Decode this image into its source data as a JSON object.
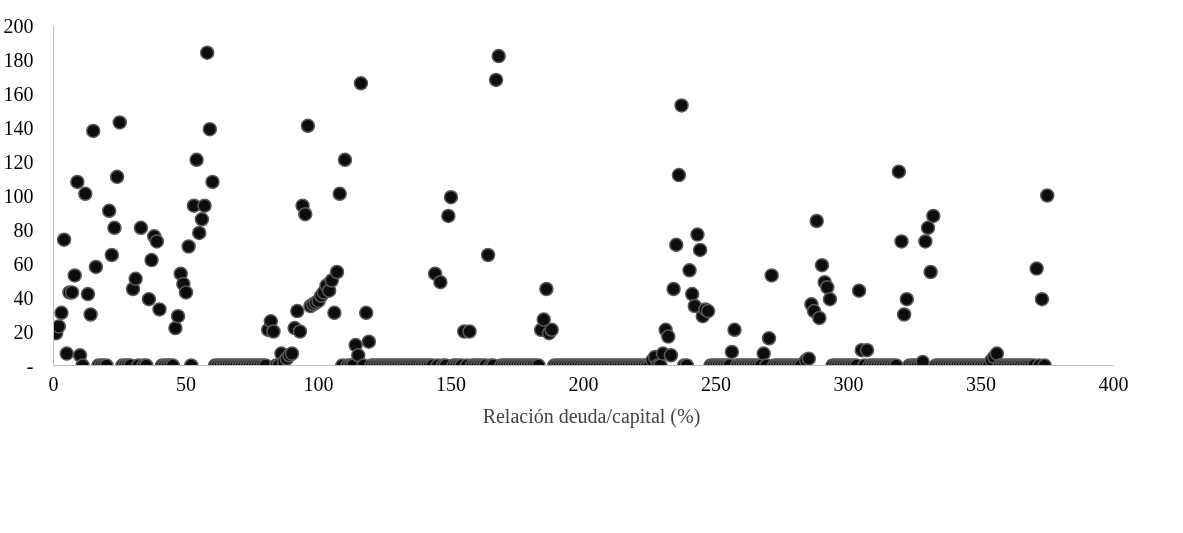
{
  "chart_data": {
    "type": "scatter",
    "xlim": [
      0,
      400
    ],
    "xticks": [
      0,
      50,
      100,
      150,
      200,
      250,
      300,
      350,
      400
    ],
    "ylim": [
      0,
      200
    ],
    "yticks": [
      {
        "value": 0,
        "label": "-"
      },
      20,
      40,
      60,
      80,
      100,
      120,
      140,
      160,
      180,
      200
    ],
    "grid": false,
    "legend": "bottom",
    "marker": "circle",
    "series": [
      {
        "name": "Relación deuda/capital (%)",
        "color": "#0d0d0d",
        "x": [
          1,
          2,
          3,
          4,
          5,
          6,
          7,
          8,
          9,
          10,
          11,
          12,
          13,
          14,
          15,
          16,
          17,
          18,
          19,
          20,
          21,
          22,
          23,
          24,
          25,
          26,
          27,
          28,
          29,
          30,
          31,
          32,
          33,
          34,
          35,
          36,
          37,
          38,
          39,
          40,
          41,
          42,
          43,
          44,
          45,
          46,
          47,
          48,
          49,
          50,
          51,
          52,
          53,
          54,
          55,
          56,
          57,
          58,
          59,
          60,
          61,
          62,
          63,
          64,
          65,
          66,
          67,
          68,
          69,
          70,
          71,
          72,
          73,
          74,
          75,
          76,
          77,
          78,
          79,
          80,
          81,
          82,
          83,
          84,
          85,
          86,
          87,
          88,
          89,
          90,
          91,
          92,
          93,
          94,
          95,
          96,
          97,
          98,
          99,
          100,
          101,
          102,
          103,
          104,
          105,
          106,
          107,
          108,
          109,
          110,
          111,
          112,
          113,
          114,
          115,
          116,
          117,
          118,
          119,
          120,
          121,
          122,
          123,
          124,
          125,
          126,
          127,
          128,
          129,
          130,
          131,
          132,
          133,
          134,
          135,
          136,
          137,
          138,
          139,
          140,
          141,
          142,
          143,
          144,
          145,
          146,
          147,
          148,
          149,
          150,
          151,
          152,
          153,
          154,
          155,
          156,
          157,
          158,
          159,
          160,
          161,
          162,
          163,
          164,
          165,
          166,
          167,
          168,
          169,
          170,
          171,
          172,
          173,
          174,
          175,
          176,
          177,
          178,
          179,
          180,
          181,
          182,
          183,
          184,
          185,
          186,
          187,
          188,
          189,
          190,
          191,
          192,
          193,
          194,
          195,
          196,
          197,
          198,
          199,
          200,
          201,
          202,
          203,
          204,
          205,
          206,
          207,
          208,
          209,
          210,
          211,
          212,
          213,
          214,
          215,
          216,
          217,
          218,
          219,
          220,
          221,
          222,
          223,
          224,
          225,
          226,
          227,
          228,
          229,
          230,
          231,
          232,
          233,
          234,
          235,
          236,
          237,
          238,
          239,
          240,
          241,
          242,
          243,
          244,
          245,
          246,
          247,
          248,
          249,
          250,
          251,
          252,
          253,
          254,
          255,
          256,
          257,
          258,
          259,
          260,
          261,
          262,
          263,
          264,
          265,
          266,
          267,
          268,
          269,
          270,
          271,
          272,
          273,
          274,
          275,
          276,
          277,
          278,
          279,
          280,
          281,
          282,
          284,
          285,
          286,
          287,
          288,
          289,
          290,
          291,
          292,
          293,
          294,
          295,
          296,
          297,
          298,
          299,
          300,
          301,
          302,
          303,
          304,
          305,
          306,
          307,
          308,
          309,
          310,
          311,
          312,
          313,
          314,
          315,
          316,
          317,
          318,
          319,
          320,
          321,
          322,
          323,
          324,
          325,
          326,
          327,
          328,
          329,
          330,
          331,
          332,
          333,
          334,
          335,
          336,
          337,
          338,
          339,
          340,
          341,
          342,
          343,
          344,
          345,
          346,
          347,
          348,
          349,
          350,
          351,
          352,
          353,
          354,
          355,
          356,
          357,
          358,
          359,
          360,
          361,
          362,
          363,
          364,
          365,
          366,
          367,
          368,
          369,
          370,
          371,
          372,
          373,
          374,
          375
        ],
        "values": [
          19,
          23,
          31,
          74,
          7,
          43,
          43,
          53,
          108,
          6,
          0,
          101,
          42,
          30,
          138,
          58,
          0,
          0,
          0,
          0,
          91,
          65,
          81,
          111,
          143,
          0,
          0,
          0,
          0,
          45,
          51,
          0,
          81,
          0,
          0,
          39,
          62,
          76,
          73,
          33,
          0,
          0,
          0,
          0,
          0,
          22,
          29,
          54,
          48,
          43,
          70,
          0,
          94,
          121,
          78,
          86,
          94,
          184,
          139,
          108,
          0,
          0,
          0,
          0,
          0,
          0,
          0,
          0,
          0,
          0,
          0,
          0,
          0,
          0,
          0,
          0,
          0,
          0,
          0,
          0,
          21,
          26,
          20,
          0,
          0,
          7,
          2,
          4,
          6,
          7,
          22,
          32,
          20,
          94,
          89,
          141,
          35,
          36,
          37,
          38,
          41,
          43,
          47,
          44,
          50,
          31,
          55,
          101,
          0,
          121,
          0,
          0,
          0,
          12,
          6,
          166,
          0,
          31,
          14,
          0,
          0,
          0,
          0,
          0,
          0,
          0,
          0,
          0,
          0,
          0,
          0,
          0,
          0,
          0,
          0,
          0,
          0,
          0,
          0,
          0,
          0,
          0,
          0,
          54,
          0,
          49,
          0,
          0,
          88,
          99,
          0,
          0,
          0,
          0,
          20,
          0,
          20,
          0,
          0,
          0,
          0,
          0,
          0,
          65,
          0,
          0,
          168,
          182,
          0,
          0,
          0,
          0,
          0,
          0,
          0,
          0,
          0,
          0,
          0,
          0,
          0,
          0,
          0,
          21,
          27,
          45,
          19,
          21,
          0,
          0,
          0,
          0,
          0,
          0,
          0,
          0,
          0,
          0,
          0,
          0,
          0,
          0,
          0,
          0,
          0,
          0,
          0,
          0,
          0,
          0,
          0,
          0,
          0,
          0,
          0,
          0,
          0,
          0,
          0,
          0,
          0,
          0,
          0,
          0,
          0,
          3,
          5,
          0,
          0,
          7,
          21,
          17,
          6,
          45,
          71,
          112,
          153,
          0,
          0,
          56,
          42,
          35,
          77,
          68,
          29,
          33,
          32,
          0,
          0,
          0,
          0,
          0,
          0,
          0,
          0,
          8,
          21,
          0,
          0,
          0,
          0,
          0,
          0,
          0,
          0,
          0,
          0,
          7,
          0,
          16,
          53,
          0,
          0,
          0,
          0,
          0,
          0,
          0,
          0,
          0,
          0,
          0,
          3,
          4,
          36,
          32,
          85,
          28,
          59,
          49,
          46,
          39,
          0,
          0,
          0,
          0,
          0,
          0,
          0,
          0,
          0,
          0,
          44,
          9,
          0,
          9,
          0,
          0,
          0,
          0,
          0,
          0,
          0,
          0,
          0,
          0,
          0,
          114,
          73,
          30,
          39,
          0,
          0,
          0,
          0,
          0,
          2,
          73,
          81,
          55,
          88,
          0,
          0,
          0,
          0,
          0,
          0,
          0,
          0,
          0,
          0,
          0,
          0,
          0,
          0,
          0,
          0,
          0,
          0,
          0,
          0,
          0,
          3,
          5,
          7,
          0,
          0,
          0,
          0,
          0,
          0,
          0,
          0,
          0,
          0,
          0,
          0,
          0,
          0,
          57,
          0,
          39,
          0,
          100
        ]
      }
    ]
  }
}
